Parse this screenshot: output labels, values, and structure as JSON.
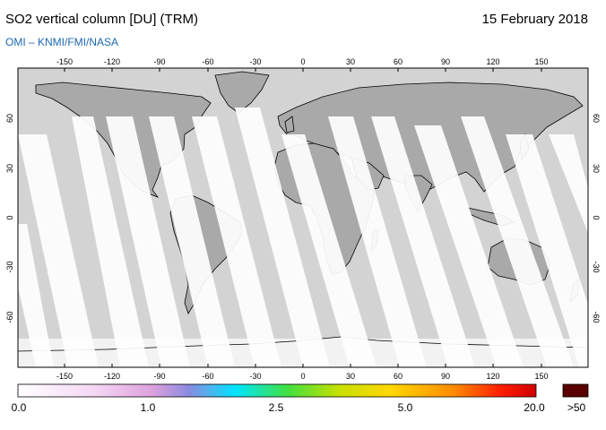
{
  "header": {
    "title": "SO2 vertical column [DU] (TRM)",
    "date": "15 February 2018",
    "subtitle": "OMI  –  KNMI/FMI/NASA"
  },
  "map": {
    "projection": "equirectangular",
    "lon_ticks": [
      "-150",
      "-120",
      "-90",
      "-60",
      "-30",
      "0",
      "30",
      "60",
      "90",
      "120",
      "150"
    ],
    "lat_ticks": [
      "60",
      "30",
      "0",
      "-30",
      "-60"
    ],
    "colors": {
      "ocean_nodata": "#d3d3d3",
      "land_nodata": "#a9a9a9",
      "swath_low": "#ffffff",
      "coastline": "#000000"
    }
  },
  "colorbar": {
    "labels": [
      "0.0",
      "1.0",
      "2.5",
      "5.0",
      "20.0",
      ">50"
    ],
    "colors": [
      "#ffffff",
      "#f4d6f4",
      "#dda0dd",
      "#8a8ae0",
      "#00e5ff",
      "#40e040",
      "#c8e000",
      "#ffd700",
      "#ff8c00",
      "#ff2000",
      "#d00000"
    ],
    "overflow_color": "#5a0000"
  }
}
